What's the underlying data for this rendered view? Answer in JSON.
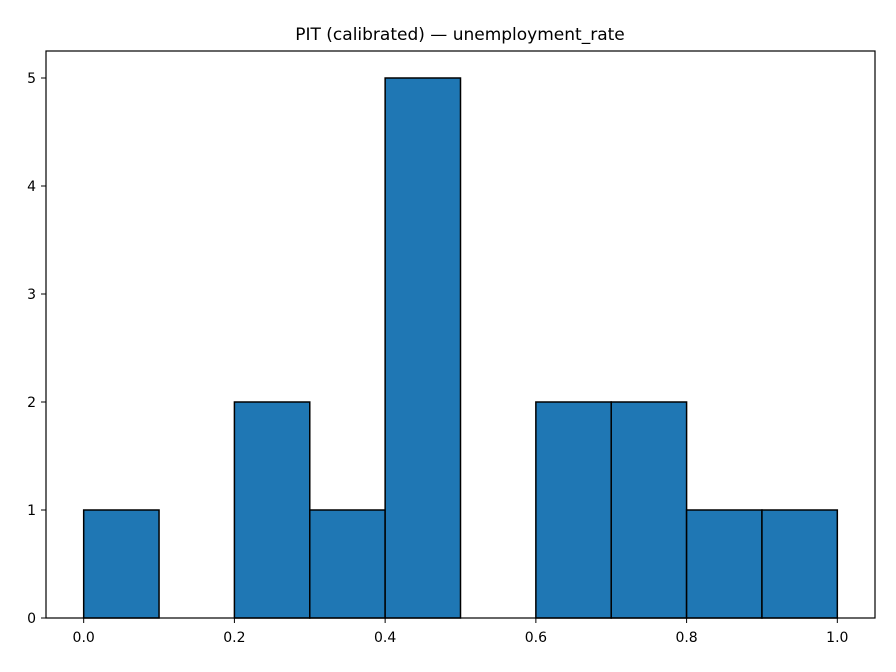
{
  "chart_data": {
    "type": "bar",
    "title": "PIT (calibrated) — unemployment_rate",
    "xlabel": "",
    "ylabel": "",
    "bin_edges": [
      0.0,
      0.1,
      0.2,
      0.3,
      0.4,
      0.5,
      0.6,
      0.7,
      0.8,
      0.9,
      1.0
    ],
    "values": [
      1,
      0,
      2,
      1,
      5,
      0,
      2,
      2,
      1,
      1
    ],
    "xlim": [
      -0.05,
      1.05
    ],
    "ylim": [
      0,
      5.25
    ],
    "xticks": [
      "0.0",
      "0.2",
      "0.4",
      "0.6",
      "0.8",
      "1.0"
    ],
    "yticks": [
      "0",
      "1",
      "2",
      "3",
      "4",
      "5"
    ],
    "grid": false,
    "legend": "none",
    "colors": {
      "bar_fill": "#1f77b4",
      "bar_edge": "#000000"
    }
  }
}
